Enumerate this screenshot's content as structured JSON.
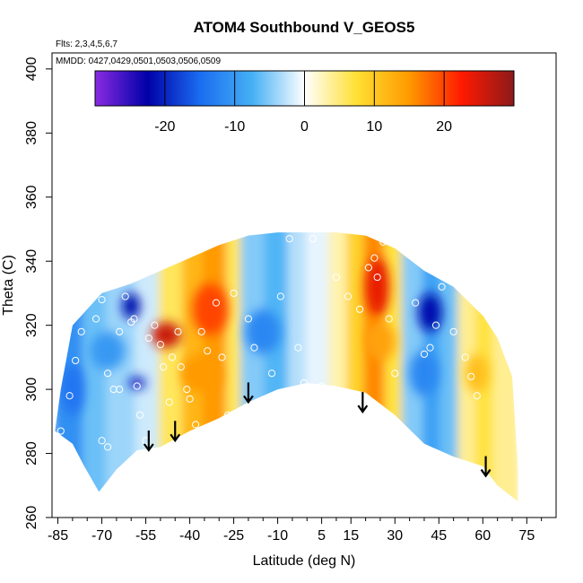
{
  "chart_data": {
    "type": "heatmap",
    "title": "ATOM4 Southbound V_GEOS5",
    "flights_note": "Flts: 2,3,4,5,6,7",
    "dates_note": "MMDD: 0427,0429,0501,0503,0506,0509",
    "xlabel": "Latitude (deg N)",
    "ylabel": "Theta (C)",
    "xlim": [
      -87,
      85
    ],
    "ylim": [
      260,
      405
    ],
    "x_ticks": [
      -85,
      -70,
      -55,
      -40,
      -25,
      -10,
      5,
      15,
      30,
      45,
      60,
      75
    ],
    "x_minor_ticks": [
      -80,
      -75,
      -65,
      -60,
      -50,
      -45,
      -35,
      -30,
      -20,
      -15,
      -5,
      0,
      10,
      20,
      25,
      35,
      40,
      50,
      55,
      65,
      70,
      80
    ],
    "y_ticks": [
      260,
      280,
      300,
      320,
      340,
      360,
      380,
      400
    ],
    "colorbar": {
      "range": [
        -30,
        30
      ],
      "ticks": [
        -20,
        -10,
        0,
        10,
        20
      ],
      "stops": [
        "#8a2be2",
        "#0000a8",
        "#1a6cf0",
        "#45b0f5",
        "#ffffff",
        "#ffe033",
        "#ff9a00",
        "#ff1a00",
        "#8b1a1a"
      ]
    },
    "arrows": [
      {
        "lat": -54,
        "theta": 281
      },
      {
        "lat": -45,
        "theta": 284
      },
      {
        "lat": -20,
        "theta": 296
      },
      {
        "lat": 19,
        "theta": 293
      },
      {
        "lat": 61,
        "theta": 273
      }
    ],
    "domain": {
      "top": [
        [
          -70,
          330
        ],
        [
          -60,
          333
        ],
        [
          -50,
          337
        ],
        [
          -40,
          341
        ],
        [
          -30,
          345
        ],
        [
          -20,
          348
        ],
        [
          -10,
          349
        ],
        [
          0,
          349
        ],
        [
          10,
          349
        ],
        [
          20,
          348
        ],
        [
          30,
          344
        ],
        [
          40,
          337
        ],
        [
          50,
          332
        ],
        [
          60,
          323
        ],
        [
          65,
          316
        ],
        [
          70,
          304
        ],
        [
          72,
          275
        ]
      ],
      "bottom": [
        [
          72,
          265
        ],
        [
          65,
          270
        ],
        [
          60,
          276
        ],
        [
          50,
          279
        ],
        [
          40,
          283
        ],
        [
          30,
          292
        ],
        [
          20,
          299
        ],
        [
          10,
          301
        ],
        [
          0,
          302
        ],
        [
          -10,
          300
        ],
        [
          -20,
          296
        ],
        [
          -30,
          291
        ],
        [
          -40,
          287
        ],
        [
          -50,
          282
        ],
        [
          -58,
          281
        ],
        [
          -65,
          275
        ],
        [
          -71,
          268
        ],
        [
          -76,
          276
        ],
        [
          -80,
          283
        ],
        [
          -86,
          287
        ]
      ],
      "west_edge": [
        [
          -86,
          287
        ],
        [
          -84,
          300
        ],
        [
          -80,
          320
        ],
        [
          -75,
          325
        ],
        [
          -70,
          330
        ]
      ]
    },
    "bands": [
      {
        "x0": -86,
        "x1": -76,
        "v": -11
      },
      {
        "x0": -76,
        "x1": -68,
        "v": -6
      },
      {
        "x0": -68,
        "x1": -58,
        "v": -4
      },
      {
        "x0": -58,
        "x1": -50,
        "v": -2
      },
      {
        "x0": -50,
        "x1": -42,
        "v": 6
      },
      {
        "x0": -42,
        "x1": -35,
        "v": 12
      },
      {
        "x0": -35,
        "x1": -27,
        "v": 15
      },
      {
        "x0": -27,
        "x1": -22,
        "v": 6
      },
      {
        "x0": -22,
        "x1": -14,
        "v": -5
      },
      {
        "x0": -14,
        "x1": -6,
        "v": -7
      },
      {
        "x0": -6,
        "x1": 0,
        "v": -3
      },
      {
        "x0": 0,
        "x1": 8,
        "v": -1
      },
      {
        "x0": 8,
        "x1": 14,
        "v": 3
      },
      {
        "x0": 14,
        "x1": 20,
        "v": 9
      },
      {
        "x0": 20,
        "x1": 27,
        "v": 16
      },
      {
        "x0": 27,
        "x1": 33,
        "v": 7
      },
      {
        "x0": 33,
        "x1": 40,
        "v": -5
      },
      {
        "x0": 40,
        "x1": 46,
        "v": -9
      },
      {
        "x0": 46,
        "x1": 52,
        "v": -6
      },
      {
        "x0": 52,
        "x1": 58,
        "v": 4
      },
      {
        "x0": 58,
        "x1": 64,
        "v": 7
      },
      {
        "x0": 64,
        "x1": 72,
        "v": 4
      }
    ],
    "blobs": [
      {
        "lat": -48,
        "theta": 317,
        "v": 26,
        "rx": 5,
        "ry": 4
      },
      {
        "lat": -33,
        "theta": 325,
        "v": 20,
        "rx": 6,
        "ry": 8
      },
      {
        "lat": -36,
        "theta": 305,
        "v": 15,
        "rx": 7,
        "ry": 6
      },
      {
        "lat": -60,
        "theta": 326,
        "v": -22,
        "rx": 3,
        "ry": 4
      },
      {
        "lat": -58,
        "theta": 302,
        "v": -20,
        "rx": 3,
        "ry": 2
      },
      {
        "lat": -68,
        "theta": 312,
        "v": -10,
        "rx": 6,
        "ry": 6
      },
      {
        "lat": -15,
        "theta": 318,
        "v": -12,
        "rx": 6,
        "ry": 7
      },
      {
        "lat": 24,
        "theta": 332,
        "v": 24,
        "rx": 4,
        "ry": 9
      },
      {
        "lat": 25,
        "theta": 315,
        "v": 14,
        "rx": 5,
        "ry": 6
      },
      {
        "lat": 42,
        "theta": 324,
        "v": -22,
        "rx": 4,
        "ry": 6
      },
      {
        "lat": 40,
        "theta": 305,
        "v": -12,
        "rx": 5,
        "ry": 7
      },
      {
        "lat": -80,
        "theta": 300,
        "v": -14,
        "rx": 4,
        "ry": 8
      },
      {
        "lat": 58,
        "theta": 305,
        "v": 11,
        "rx": 4,
        "ry": 6
      }
    ],
    "points": [
      [
        -84,
        287
      ],
      [
        -81,
        298
      ],
      [
        -79,
        309
      ],
      [
        -77,
        318
      ],
      [
        -72,
        322
      ],
      [
        -70,
        328
      ],
      [
        -68,
        305
      ],
      [
        -68,
        282
      ],
      [
        -66,
        300
      ],
      [
        -64,
        318
      ],
      [
        -62,
        329
      ],
      [
        -60,
        321
      ],
      [
        -58,
        301
      ],
      [
        -57,
        292
      ],
      [
        -55,
        284
      ],
      [
        -52,
        320
      ],
      [
        -50,
        314
      ],
      [
        -49,
        307
      ],
      [
        -47,
        296
      ],
      [
        -44,
        318
      ],
      [
        -43,
        307
      ],
      [
        -41,
        300
      ],
      [
        -38,
        289
      ],
      [
        -36,
        318
      ],
      [
        -34,
        312
      ],
      [
        -31,
        327
      ],
      [
        -29,
        310
      ],
      [
        -27,
        292
      ],
      [
        -25,
        330
      ],
      [
        -20,
        322
      ],
      [
        -18,
        313
      ],
      [
        -12,
        305
      ],
      [
        -9,
        329
      ],
      [
        -6,
        347
      ],
      [
        -3,
        313
      ],
      [
        -1,
        302
      ],
      [
        2,
        347
      ],
      [
        5,
        301
      ],
      [
        10,
        335
      ],
      [
        14,
        329
      ],
      [
        18,
        325
      ],
      [
        21,
        338
      ],
      [
        23,
        341
      ],
      [
        24,
        335
      ],
      [
        26,
        346
      ],
      [
        28,
        322
      ],
      [
        30,
        305
      ],
      [
        33,
        286
      ],
      [
        37,
        327
      ],
      [
        40,
        311
      ],
      [
        42,
        313
      ],
      [
        44,
        320
      ],
      [
        46,
        332
      ],
      [
        50,
        318
      ],
      [
        54,
        310
      ],
      [
        56,
        304
      ],
      [
        58,
        298
      ],
      [
        -70,
        284
      ],
      [
        -64,
        300
      ],
      [
        -59,
        322
      ],
      [
        -54,
        316
      ],
      [
        -46,
        310
      ],
      [
        -40,
        297
      ]
    ]
  }
}
